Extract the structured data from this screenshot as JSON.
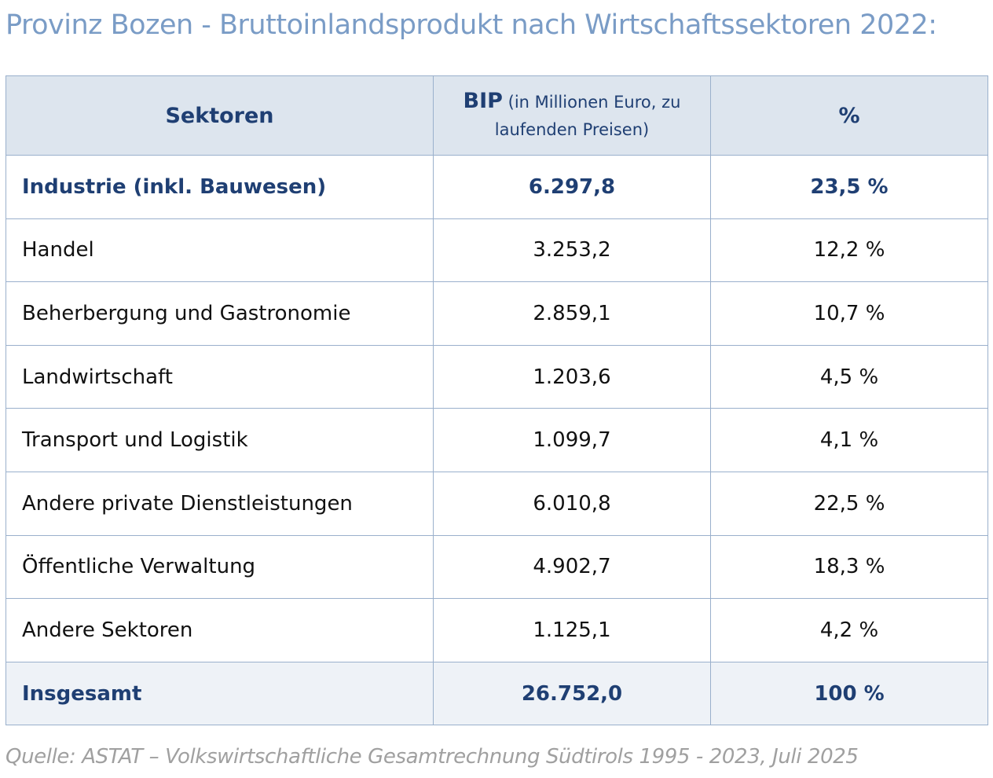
{
  "title": "Provinz Bozen - Bruttoinlandsprodukt nach Wirtschaftssektoren 2022:",
  "table": {
    "headers": {
      "sector": "Sektoren",
      "bip_bold": "BIP",
      "bip_rest": " (in Millionen Euro, zu laufenden Preisen)",
      "percent": "%"
    },
    "rows": [
      {
        "sector": "Industrie (inkl. Bauwesen)",
        "bip": "6.297,8",
        "percent": "23,5 %"
      },
      {
        "sector": "Handel",
        "bip": "3.253,2",
        "percent": "12,2 %"
      },
      {
        "sector": "Beherbergung und Gastronomie",
        "bip": "2.859,1",
        "percent": "10,7 %"
      },
      {
        "sector": "Landwirtschaft",
        "bip": "1.203,6",
        "percent": "4,5 %"
      },
      {
        "sector": "Transport und Logistik",
        "bip": "1.099,7",
        "percent": "4,1 %"
      },
      {
        "sector": "Andere private Dienstleistungen",
        "bip": "6.010,8",
        "percent": "22,5 %"
      },
      {
        "sector": "Öffentliche Verwaltung",
        "bip": "4.902,7",
        "percent": "18,3 %"
      },
      {
        "sector": "Andere Sektoren",
        "bip": "1.125,1",
        "percent": "4,2 %"
      }
    ],
    "total": {
      "sector": "Insgesamt",
      "bip": "26.752,0",
      "percent": "100 %"
    }
  },
  "source": "Quelle: ASTAT – Volkswirtschaftliche Gesamtrechnung Südtirols 1995 - 2023, Juli 2025",
  "colors": {
    "title": "#7a9cc6",
    "header_bg": "#dde5ee",
    "accent_text": "#1f3f73",
    "border": "#9ab0cc"
  }
}
